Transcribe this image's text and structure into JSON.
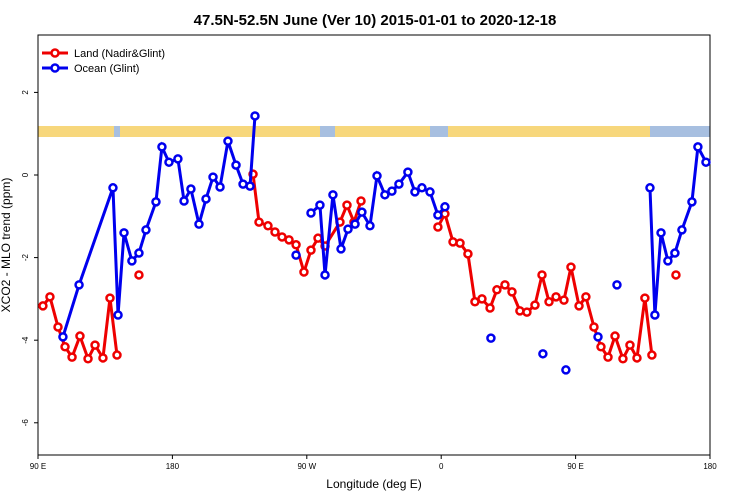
{
  "chart_data": {
    "type": "line",
    "title": "47.5N-52.5N June (Ver 10)   2015-01-01 to 2020-12-18",
    "x_label": "Longitude (deg E)",
    "y_label": "XCO2 - MLO trend (ppm)",
    "xlim": [
      90,
      540
    ],
    "ylim": [
      -6.78,
      3.39
    ],
    "xticks": [
      {
        "value": 90,
        "label": "90 E"
      },
      180,
      {
        "value": 270,
        "label": "90 W"
      },
      {
        "value": 360,
        "label": "0"
      },
      {
        "value": 450,
        "label": "90 E"
      },
      {
        "value": 540,
        "label": "180"
      }
    ],
    "yticks": [
      -6,
      -4,
      -2,
      0,
      2
    ],
    "legend": "top-left",
    "series": [
      {
        "name": "Land (Nadir&Glint)",
        "color": "#ee0000",
        "x": [
          93.3,
          98.0,
          103.4,
          108.1,
          112.8,
          118.1,
          123.5,
          128.2,
          133.5,
          138.2,
          142.9,
          null,
          157.6,
          null,
          234.0,
          238.0,
          244.0,
          248.7,
          253.4,
          258.1,
          262.8,
          268.1,
          272.8,
          277.5,
          282.2,
          292.2,
          296.9,
          301.6,
          306.3,
          null,
          357.8,
          362.5,
          367.9,
          372.6,
          377.9,
          382.6,
          387.3,
          392.7,
          397.3,
          402.7,
          407.4,
          412.7,
          417.4,
          422.8,
          427.5,
          432.2,
          436.9,
          442.2,
          446.9,
          452.3,
          456.9,
          462.3,
          467.0,
          471.7,
          476.4,
          481.7,
          486.4,
          491.1,
          496.4,
          501.1,
          null,
          517.2
        ],
        "values": [
          -3.17,
          -2.95,
          -3.68,
          -4.16,
          -4.41,
          -3.9,
          -4.45,
          -4.12,
          -4.43,
          -2.98,
          -4.36,
          null,
          -2.42,
          null,
          0.02,
          -1.14,
          -1.23,
          -1.38,
          -1.5,
          -1.57,
          -1.69,
          -2.35,
          -1.82,
          -1.53,
          -1.72,
          -1.14,
          -0.73,
          -1.14,
          -0.63,
          null,
          -1.26,
          -0.94,
          -1.62,
          -1.65,
          -1.91,
          -3.07,
          -3.0,
          -3.22,
          -2.78,
          -2.66,
          -2.83,
          -3.29,
          -3.32,
          -3.15,
          -2.42,
          -3.07,
          -2.95,
          -3.03,
          -2.23,
          -3.17,
          -2.95,
          -3.68,
          -4.16,
          -4.41,
          -3.9,
          -4.45,
          -4.12,
          -4.43,
          -2.98,
          -4.36,
          null,
          -2.42
        ]
      },
      {
        "name": "Ocean (Glint)",
        "color": "#0000ee",
        "x": [
          106.7,
          117.5,
          140.2,
          143.6,
          147.6,
          152.9,
          157.6,
          162.3,
          169.0,
          173.0,
          177.7,
          183.7,
          187.8,
          192.4,
          197.8,
          202.5,
          207.2,
          211.9,
          217.2,
          222.6,
          227.3,
          232.0,
          235.3,
          null,
          262.8,
          null,
          272.8,
          278.8,
          282.2,
          287.5,
          292.9,
          297.6,
          302.3,
          306.9,
          312.3,
          317.0,
          322.3,
          327.0,
          331.7,
          337.7,
          342.4,
          347.1,
          352.5,
          357.8,
          362.5,
          null,
          393.3,
          null,
          428.1,
          null,
          443.5,
          null,
          465.0,
          null,
          477.7,
          null,
          499.8,
          503.1,
          507.2,
          511.8,
          516.5,
          521.2,
          527.9,
          531.9,
          537.3
        ],
        "values": [
          -3.92,
          -2.66,
          -0.31,
          -3.39,
          -1.4,
          -2.08,
          -1.89,
          -1.33,
          -0.65,
          0.68,
          0.31,
          0.39,
          -0.63,
          -0.34,
          -1.19,
          -0.58,
          -0.05,
          -0.29,
          0.82,
          0.24,
          -0.22,
          -0.27,
          1.43,
          null,
          -1.94,
          null,
          -0.92,
          -0.73,
          -2.42,
          -0.48,
          -1.79,
          -1.31,
          -1.19,
          -0.9,
          -1.23,
          -0.02,
          -0.48,
          -0.39,
          -0.22,
          0.07,
          -0.41,
          -0.31,
          -0.41,
          -0.97,
          -0.77,
          null,
          -3.95,
          null,
          -4.33,
          null,
          -4.72,
          null,
          -3.92,
          null,
          -2.66,
          null,
          -0.31,
          -3.39,
          -1.4,
          -2.08,
          -1.89,
          -1.33,
          -0.65,
          0.68,
          0.31
        ]
      }
    ]
  }
}
